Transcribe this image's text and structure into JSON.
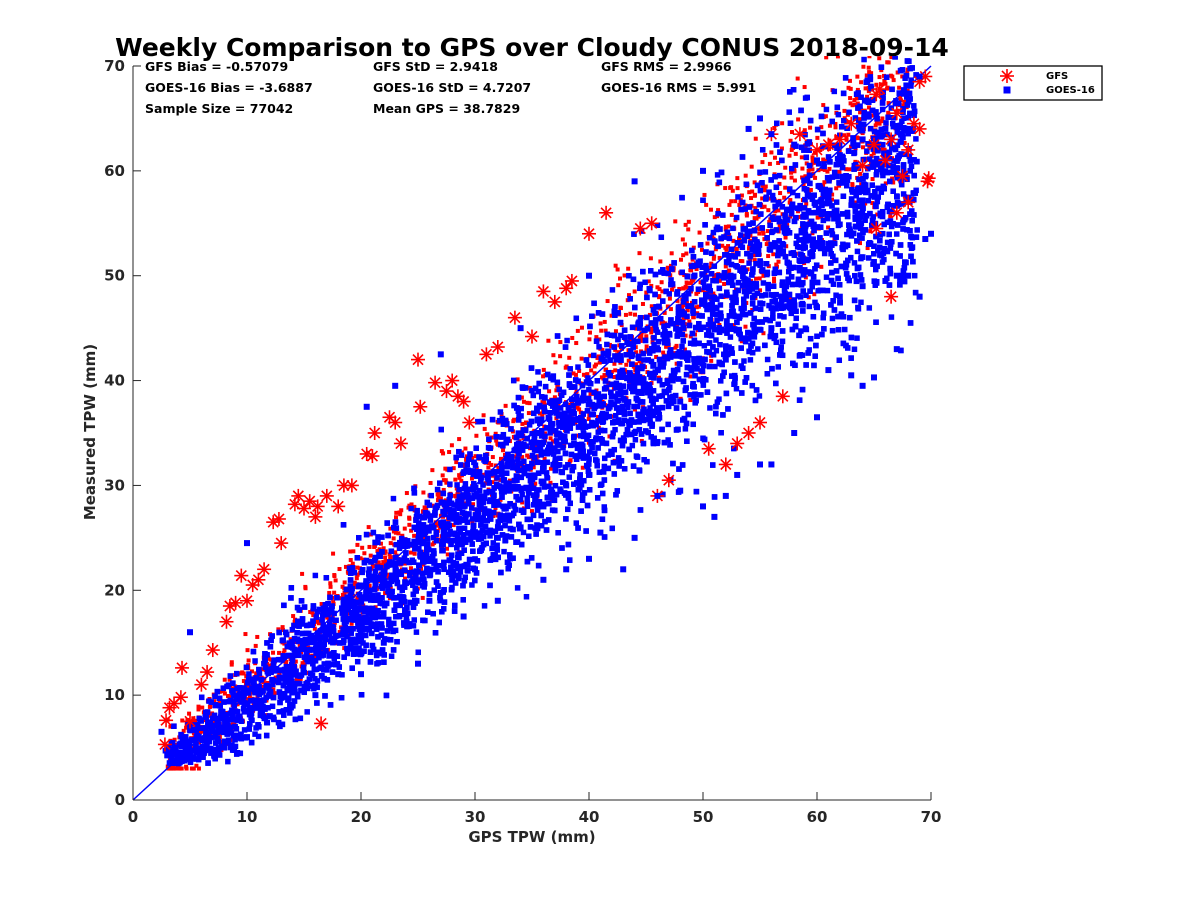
{
  "chart_data": {
    "type": "scatter",
    "title": "Weekly Comparison to GPS over Cloudy CONUS 2018-09-14",
    "xlabel": "GPS TPW (mm)",
    "ylabel": "Measured TPW (mm)",
    "xlim": [
      0,
      70
    ],
    "ylim": [
      0,
      70
    ],
    "xticks": [
      "0",
      "10",
      "20",
      "30",
      "40",
      "50",
      "60",
      "70"
    ],
    "yticks": [
      "0",
      "10",
      "20",
      "30",
      "40",
      "50",
      "60",
      "70"
    ],
    "grid": false,
    "legend_position": "outside-top-right",
    "reference_line": {
      "x": [
        0,
        70
      ],
      "y": [
        0,
        70
      ],
      "color": "#0000ff"
    },
    "stats": [
      [
        "GFS Bias = -0.57079",
        "GFS StD = 2.9418",
        "GFS RMS = 2.9966"
      ],
      [
        "GOES-16 Bias = -3.6887",
        "GOES-16 StD = 4.7207",
        "GOES-16 RMS = 5.991"
      ],
      [
        "Sample Size = 77042",
        "Mean GPS = 38.7829"
      ]
    ],
    "series": [
      {
        "name": "GFS",
        "marker": "asterisk",
        "color": "#ff0000",
        "points": [
          [
            2.8,
            5.3
          ],
          [
            2.9,
            7.6
          ],
          [
            3.2,
            8.8
          ],
          [
            3.6,
            9.2
          ],
          [
            4.2,
            9.8
          ],
          [
            4.3,
            12.6
          ],
          [
            5.0,
            7.5
          ],
          [
            6.0,
            11.0
          ],
          [
            6.5,
            12.2
          ],
          [
            7.0,
            14.3
          ],
          [
            8.2,
            17.0
          ],
          [
            8.5,
            18.5
          ],
          [
            9.0,
            18.8
          ],
          [
            9.5,
            21.4
          ],
          [
            10.0,
            19.0
          ],
          [
            10.5,
            20.5
          ],
          [
            11.0,
            21.0
          ],
          [
            11.5,
            22.0
          ],
          [
            12.3,
            26.5
          ],
          [
            12.8,
            26.8
          ],
          [
            13.0,
            24.5
          ],
          [
            14.2,
            28.2
          ],
          [
            14.5,
            29.0
          ],
          [
            15.0,
            27.8
          ],
          [
            15.5,
            28.5
          ],
          [
            16.0,
            27.0
          ],
          [
            16.2,
            28.0
          ],
          [
            16.5,
            7.3
          ],
          [
            17.0,
            29.0
          ],
          [
            18.0,
            28.0
          ],
          [
            18.5,
            30.0
          ],
          [
            19.2,
            30.0
          ],
          [
            20.5,
            33.0
          ],
          [
            21.0,
            32.8
          ],
          [
            21.2,
            35.0
          ],
          [
            22.5,
            36.5
          ],
          [
            23.0,
            36.0
          ],
          [
            23.5,
            34.0
          ],
          [
            25.0,
            42.0
          ],
          [
            25.2,
            37.5
          ],
          [
            26.5,
            39.8
          ],
          [
            27.5,
            39.0
          ],
          [
            28.0,
            40.0
          ],
          [
            28.5,
            38.5
          ],
          [
            29.0,
            38.0
          ],
          [
            29.5,
            36.0
          ],
          [
            31.0,
            42.5
          ],
          [
            32.0,
            43.2
          ],
          [
            33.5,
            46.0
          ],
          [
            35.0,
            44.2
          ],
          [
            36.0,
            48.5
          ],
          [
            37.0,
            47.5
          ],
          [
            38.0,
            48.8
          ],
          [
            38.5,
            49.5
          ],
          [
            40.0,
            54.0
          ],
          [
            41.5,
            56.0
          ],
          [
            44.5,
            54.5
          ],
          [
            45.5,
            55.0
          ],
          [
            46.0,
            29.0
          ],
          [
            47.0,
            30.5
          ],
          [
            50.5,
            33.5
          ],
          [
            52.0,
            32.0
          ],
          [
            53.0,
            34.0
          ],
          [
            54.0,
            35.0
          ],
          [
            55.0,
            36.0
          ],
          [
            56.0,
            63.5
          ],
          [
            57.0,
            38.5
          ],
          [
            58.5,
            63.5
          ],
          [
            60.0,
            62.0
          ],
          [
            61.0,
            62.5
          ],
          [
            62.0,
            63.0
          ],
          [
            63.0,
            64.5
          ],
          [
            64.0,
            60.5
          ],
          [
            65.0,
            62.5
          ],
          [
            65.2,
            67.3
          ],
          [
            65.5,
            67.8
          ],
          [
            66.0,
            61.0
          ],
          [
            66.5,
            63.0
          ],
          [
            67.0,
            65.5
          ],
          [
            67.5,
            59.5
          ],
          [
            68.0,
            62.0
          ],
          [
            68.5,
            64.5
          ],
          [
            69.0,
            68.5
          ],
          [
            69.5,
            69.0
          ],
          [
            69.7,
            59.0
          ],
          [
            69.8,
            59.3
          ],
          [
            65.2,
            54.5
          ],
          [
            67.0,
            56.0
          ],
          [
            68.0,
            57.0
          ],
          [
            69.0,
            64.0
          ],
          [
            66.5,
            48.0
          ]
        ]
      },
      {
        "name": "GOES-16",
        "marker": "square",
        "color": "#0000ff",
        "points": [
          [
            4.0,
            3.5
          ],
          [
            6.0,
            4.2
          ],
          [
            8.0,
            5.0
          ],
          [
            10.0,
            6.0
          ],
          [
            12.0,
            8.0
          ],
          [
            14.0,
            9.0
          ],
          [
            16.0,
            10.0
          ],
          [
            18.0,
            12.0
          ],
          [
            20.0,
            14.0
          ],
          [
            22.0,
            15.0
          ],
          [
            24.0,
            17.0
          ],
          [
            26.0,
            19.0
          ],
          [
            28.0,
            21.0
          ],
          [
            30.0,
            22.0
          ],
          [
            32.0,
            25.0
          ],
          [
            34.0,
            26.0
          ],
          [
            36.0,
            28.0
          ],
          [
            38.0,
            30.0
          ],
          [
            40.0,
            31.0
          ],
          [
            42.0,
            33.0
          ],
          [
            44.0,
            35.0
          ],
          [
            46.0,
            37.0
          ],
          [
            48.0,
            38.0
          ],
          [
            50.0,
            40.0
          ],
          [
            52.0,
            42.0
          ],
          [
            54.0,
            44.0
          ],
          [
            56.0,
            45.0
          ],
          [
            58.0,
            47.0
          ],
          [
            60.0,
            47.0
          ],
          [
            62.0,
            48.0
          ],
          [
            64.0,
            49.0
          ],
          [
            66.0,
            49.5
          ],
          [
            67.0,
            50.0
          ],
          [
            68.0,
            50.0
          ],
          [
            69.0,
            48.0
          ],
          [
            70.0,
            54.0
          ],
          [
            69.5,
            53.5
          ],
          [
            2.5,
            6.5
          ],
          [
            5.0,
            16.0
          ],
          [
            10.0,
            24.5
          ],
          [
            20.5,
            37.5
          ],
          [
            23.0,
            39.5
          ],
          [
            27.0,
            42.5
          ],
          [
            34.0,
            45.0
          ],
          [
            40.0,
            50.0
          ],
          [
            44.0,
            59.0
          ],
          [
            50.0,
            60.0
          ],
          [
            54.0,
            64.0
          ],
          [
            55.0,
            65.0
          ],
          [
            56.0,
            63.5
          ],
          [
            58.0,
            62.5
          ],
          [
            60.0,
            61.0
          ],
          [
            62.0,
            61.5
          ],
          [
            64.0,
            63.0
          ],
          [
            66.0,
            64.0
          ],
          [
            68.0,
            64.0
          ],
          [
            69.0,
            69.0
          ],
          [
            20.0,
            12.0
          ],
          [
            25.0,
            13.0
          ],
          [
            29.0,
            17.5
          ],
          [
            32.0,
            19.0
          ],
          [
            36.0,
            21.0
          ],
          [
            38.0,
            22.0
          ],
          [
            40.0,
            23.0
          ],
          [
            41.0,
            25.5
          ],
          [
            43.0,
            22.0
          ],
          [
            44.0,
            25.0
          ],
          [
            46.0,
            29.0
          ],
          [
            48.0,
            29.5
          ],
          [
            50.0,
            28.0
          ],
          [
            51.0,
            27.0
          ],
          [
            52.0,
            29.0
          ],
          [
            53.0,
            31.0
          ],
          [
            55.0,
            32.0
          ],
          [
            56.0,
            32.0
          ],
          [
            58.0,
            35.0
          ],
          [
            60.0,
            36.5
          ],
          [
            61.0,
            41.0
          ],
          [
            63.0,
            40.5
          ],
          [
            64.0,
            39.5
          ],
          [
            65.0,
            40.3
          ],
          [
            67.0,
            43.0
          ],
          [
            67.5,
            50.0
          ]
        ]
      }
    ]
  }
}
